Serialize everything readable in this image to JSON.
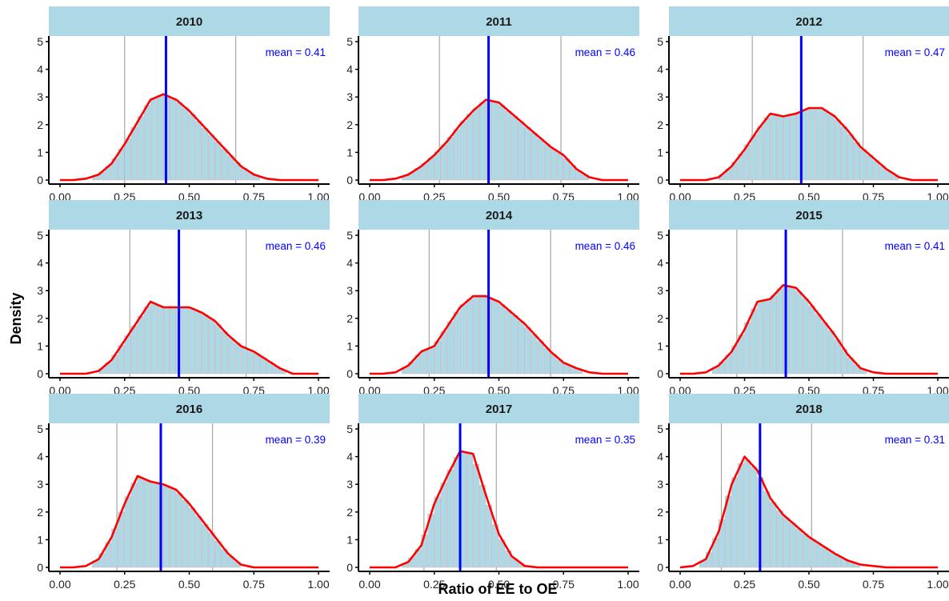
{
  "figure": {
    "ylabel": "Density",
    "xlabel": "Ratio of EE to OE"
  },
  "colors": {
    "strip": "#ADD8E6",
    "bar": "#ADD8E6",
    "density": "#FF0000",
    "mean_line": "#0000FF",
    "mean_text": "#0000FF",
    "quantile_line": "#A6A6A6",
    "axis": "#000000"
  },
  "chart_data": [
    {
      "type": "bar",
      "panel": "2010",
      "mean_label": "mean = 0.41",
      "mean": 0.41,
      "q_low": 0.25,
      "q_high": 0.68,
      "x": [
        0.0,
        0.05,
        0.1,
        0.15,
        0.2,
        0.25,
        0.3,
        0.35,
        0.4,
        0.45,
        0.5,
        0.55,
        0.6,
        0.65,
        0.7,
        0.75,
        0.8,
        0.85,
        0.9,
        0.95,
        1.0
      ],
      "y": [
        0.0,
        0.0,
        0.05,
        0.2,
        0.6,
        1.3,
        2.1,
        2.9,
        3.1,
        2.9,
        2.5,
        2.0,
        1.5,
        1.0,
        0.5,
        0.2,
        0.05,
        0.0,
        0.0,
        0.0,
        0.0
      ],
      "xlim": [
        0,
        1.0
      ],
      "ylim": [
        0,
        5
      ],
      "xticks": [
        "0.00",
        "0.25",
        "0.50",
        "0.75",
        "1.00"
      ],
      "yticks": [
        "0",
        "1",
        "2",
        "3",
        "4",
        "5"
      ]
    },
    {
      "type": "bar",
      "panel": "2011",
      "mean_label": "mean = 0.46",
      "mean": 0.46,
      "q_low": 0.27,
      "q_high": 0.74,
      "x": [
        0.0,
        0.05,
        0.1,
        0.15,
        0.2,
        0.25,
        0.3,
        0.35,
        0.4,
        0.45,
        0.5,
        0.55,
        0.6,
        0.65,
        0.7,
        0.75,
        0.8,
        0.85,
        0.9,
        0.95,
        1.0
      ],
      "y": [
        0.0,
        0.0,
        0.05,
        0.2,
        0.5,
        0.9,
        1.4,
        2.0,
        2.5,
        2.9,
        2.8,
        2.4,
        2.0,
        1.6,
        1.2,
        0.9,
        0.4,
        0.1,
        0.0,
        0.0,
        0.0
      ],
      "xlim": [
        0,
        1.0
      ],
      "ylim": [
        0,
        5
      ],
      "xticks": [
        "0.00",
        "0.25",
        "0.50",
        "0.75",
        "1.00"
      ],
      "yticks": [
        "0",
        "1",
        "2",
        "3",
        "4",
        "5"
      ]
    },
    {
      "type": "bar",
      "panel": "2012",
      "mean_label": "mean = 0.47",
      "mean": 0.47,
      "q_low": 0.28,
      "q_high": 0.71,
      "x": [
        0.0,
        0.05,
        0.1,
        0.15,
        0.2,
        0.25,
        0.3,
        0.35,
        0.4,
        0.45,
        0.5,
        0.55,
        0.6,
        0.65,
        0.7,
        0.75,
        0.8,
        0.85,
        0.9,
        0.95,
        1.0
      ],
      "y": [
        0.0,
        0.0,
        0.0,
        0.1,
        0.5,
        1.1,
        1.8,
        2.4,
        2.3,
        2.4,
        2.6,
        2.6,
        2.3,
        1.8,
        1.2,
        0.8,
        0.4,
        0.1,
        0.0,
        0.0,
        0.0
      ],
      "xlim": [
        0,
        1.0
      ],
      "ylim": [
        0,
        5
      ],
      "xticks": [
        "0.00",
        "0.25",
        "0.50",
        "0.75",
        "1.00"
      ],
      "yticks": [
        "0",
        "1",
        "2",
        "3",
        "4",
        "5"
      ]
    },
    {
      "type": "bar",
      "panel": "2013",
      "mean_label": "mean = 0.46",
      "mean": 0.46,
      "q_low": 0.27,
      "q_high": 0.72,
      "x": [
        0.0,
        0.05,
        0.1,
        0.15,
        0.2,
        0.25,
        0.3,
        0.35,
        0.4,
        0.45,
        0.5,
        0.55,
        0.6,
        0.65,
        0.7,
        0.75,
        0.8,
        0.85,
        0.9,
        0.95,
        1.0
      ],
      "y": [
        0.0,
        0.0,
        0.0,
        0.1,
        0.5,
        1.2,
        1.9,
        2.6,
        2.4,
        2.4,
        2.4,
        2.2,
        1.9,
        1.4,
        1.0,
        0.8,
        0.5,
        0.2,
        0.0,
        0.0,
        0.0
      ],
      "xlim": [
        0,
        1.0
      ],
      "ylim": [
        0,
        5
      ],
      "xticks": [
        "0.00",
        "0.25",
        "0.50",
        "0.75",
        "1.00"
      ],
      "yticks": [
        "0",
        "1",
        "2",
        "3",
        "4",
        "5"
      ]
    },
    {
      "type": "bar",
      "panel": "2014",
      "mean_label": "mean = 0.46",
      "mean": 0.46,
      "q_low": 0.23,
      "q_high": 0.7,
      "x": [
        0.0,
        0.05,
        0.1,
        0.15,
        0.2,
        0.25,
        0.3,
        0.35,
        0.4,
        0.45,
        0.5,
        0.55,
        0.6,
        0.65,
        0.7,
        0.75,
        0.8,
        0.85,
        0.9,
        0.95,
        1.0
      ],
      "y": [
        0.0,
        0.0,
        0.05,
        0.3,
        0.8,
        1.0,
        1.7,
        2.4,
        2.8,
        2.8,
        2.6,
        2.2,
        1.8,
        1.3,
        0.8,
        0.4,
        0.2,
        0.05,
        0.0,
        0.0,
        0.0
      ],
      "xlim": [
        0,
        1.0
      ],
      "ylim": [
        0,
        5
      ],
      "xticks": [
        "0.00",
        "0.25",
        "0.50",
        "0.75",
        "1.00"
      ],
      "yticks": [
        "0",
        "1",
        "2",
        "3",
        "4",
        "5"
      ]
    },
    {
      "type": "bar",
      "panel": "2015",
      "mean_label": "mean = 0.41",
      "mean": 0.41,
      "q_low": 0.22,
      "q_high": 0.63,
      "x": [
        0.0,
        0.05,
        0.1,
        0.15,
        0.2,
        0.25,
        0.3,
        0.35,
        0.4,
        0.45,
        0.5,
        0.55,
        0.6,
        0.65,
        0.7,
        0.75,
        0.8,
        0.85,
        0.9,
        0.95,
        1.0
      ],
      "y": [
        0.0,
        0.0,
        0.05,
        0.3,
        0.8,
        1.6,
        2.6,
        2.7,
        3.2,
        3.1,
        2.6,
        2.0,
        1.4,
        0.7,
        0.2,
        0.05,
        0.0,
        0.0,
        0.0,
        0.0,
        0.0
      ],
      "xlim": [
        0,
        1.0
      ],
      "ylim": [
        0,
        5
      ],
      "xticks": [
        "0.00",
        "0.25",
        "0.50",
        "0.75",
        "1.00"
      ],
      "yticks": [
        "0",
        "1",
        "2",
        "3",
        "4",
        "5"
      ]
    },
    {
      "type": "bar",
      "panel": "2016",
      "mean_label": "mean = 0.39",
      "mean": 0.39,
      "q_low": 0.22,
      "q_high": 0.59,
      "x": [
        0.0,
        0.05,
        0.1,
        0.15,
        0.2,
        0.25,
        0.3,
        0.35,
        0.4,
        0.45,
        0.5,
        0.55,
        0.6,
        0.65,
        0.7,
        0.75,
        0.8,
        0.85,
        0.9,
        0.95,
        1.0
      ],
      "y": [
        0.0,
        0.0,
        0.05,
        0.3,
        1.1,
        2.3,
        3.3,
        3.1,
        3.0,
        2.8,
        2.3,
        1.7,
        1.1,
        0.5,
        0.1,
        0.0,
        0.0,
        0.0,
        0.0,
        0.0,
        0.0
      ],
      "xlim": [
        0,
        1.0
      ],
      "ylim": [
        0,
        5
      ],
      "xticks": [
        "0.00",
        "0.25",
        "0.50",
        "0.75",
        "1.00"
      ],
      "yticks": [
        "0",
        "1",
        "2",
        "3",
        "4",
        "5"
      ]
    },
    {
      "type": "bar",
      "panel": "2017",
      "mean_label": "mean = 0.35",
      "mean": 0.35,
      "q_low": 0.21,
      "q_high": 0.49,
      "x": [
        0.0,
        0.05,
        0.1,
        0.15,
        0.2,
        0.25,
        0.3,
        0.35,
        0.4,
        0.45,
        0.5,
        0.55,
        0.6,
        0.65,
        0.7,
        0.75,
        0.8,
        0.85,
        0.9,
        0.95,
        1.0
      ],
      "y": [
        0.0,
        0.0,
        0.0,
        0.2,
        0.8,
        2.3,
        3.3,
        4.2,
        4.1,
        2.6,
        1.2,
        0.4,
        0.05,
        0.0,
        0.0,
        0.0,
        0.0,
        0.0,
        0.0,
        0.0,
        0.0
      ],
      "xlim": [
        0,
        1.0
      ],
      "ylim": [
        0,
        5
      ],
      "xticks": [
        "0.00",
        "0.25",
        "0.50",
        "0.75",
        "1.00"
      ],
      "yticks": [
        "0",
        "1",
        "2",
        "3",
        "4",
        "5"
      ]
    },
    {
      "type": "bar",
      "panel": "2018",
      "mean_label": "mean = 0.31",
      "mean": 0.31,
      "q_low": 0.16,
      "q_high": 0.51,
      "x": [
        0.0,
        0.05,
        0.1,
        0.15,
        0.2,
        0.25,
        0.3,
        0.35,
        0.4,
        0.45,
        0.5,
        0.55,
        0.6,
        0.65,
        0.7,
        0.75,
        0.8,
        0.85,
        0.9,
        0.95,
        1.0
      ],
      "y": [
        0.0,
        0.05,
        0.3,
        1.3,
        3.0,
        4.0,
        3.5,
        2.5,
        1.9,
        1.5,
        1.1,
        0.8,
        0.5,
        0.25,
        0.1,
        0.05,
        0.0,
        0.0,
        0.0,
        0.0,
        0.0
      ],
      "xlim": [
        0,
        1.0
      ],
      "ylim": [
        0,
        5
      ],
      "xticks": [
        "0.00",
        "0.25",
        "0.50",
        "0.75",
        "1.00"
      ],
      "yticks": [
        "0",
        "1",
        "2",
        "3",
        "4",
        "5"
      ]
    }
  ]
}
